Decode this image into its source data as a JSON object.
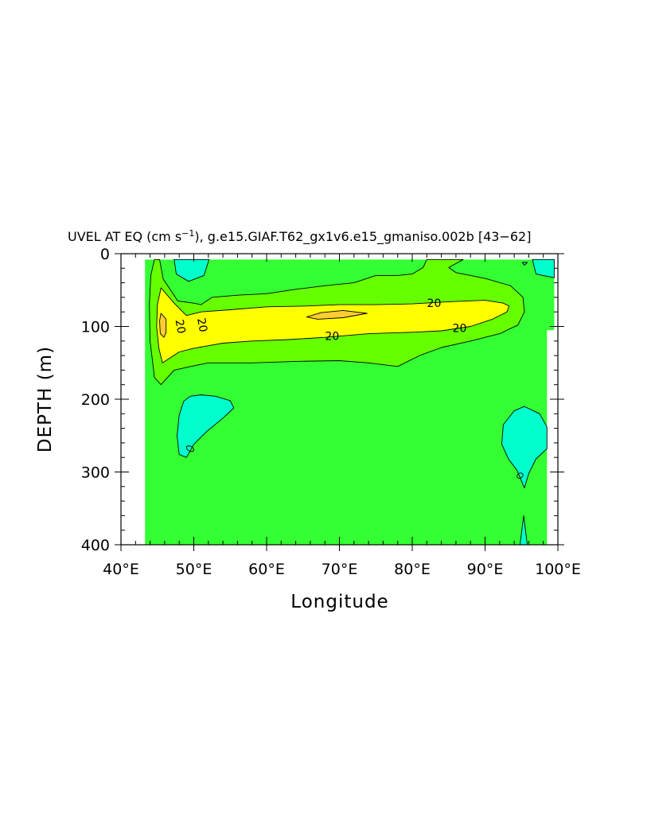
{
  "chart_data": {
    "type": "contour",
    "title": "UVEL AT EQ (cm s⁻¹), g.e15.GIAF.T62_gx1v6.e15_gmaniso.002b  43−62 ",
    "title_parts": {
      "prefix": "UVEL AT EQ (cm s",
      "superscript": "−1",
      "suffix": "), g.e15.GIAF.T62_gx1v6.e15_gmaniso.002b ",
      "years": "[43−62]"
    },
    "xlabel": "Longitude",
    "ylabel": "DEPTH (m)",
    "xlim": [
      40,
      100
    ],
    "ylim": [
      400,
      0
    ],
    "x_ticks": [
      40,
      50,
      60,
      70,
      80,
      90,
      100
    ],
    "x_tick_labels": [
      "40°E",
      "50°E",
      "60°E",
      "70°E",
      "80°E",
      "90°E",
      "100°E"
    ],
    "y_ticks": [
      0,
      100,
      200,
      300,
      400
    ],
    "y_tick_labels": [
      "0",
      "100",
      "200",
      "300",
      "400"
    ],
    "contour_labels": [
      {
        "text": "20",
        "x": 83.0,
        "y": 68
      },
      {
        "text": "20",
        "x": 86.5,
        "y": 102
      },
      {
        "text": "20",
        "x": 69.0,
        "y": 113
      },
      {
        "text": "20",
        "x": 48.2,
        "y": 100
      },
      {
        "text": "20",
        "x": 51.2,
        "y": 98
      }
    ],
    "colors": {
      "background_field": "#33ff33",
      "band_weak": "#66ff00",
      "band_strong": "#ffff00",
      "core": "#ffcc33",
      "negative": "#00ffcc"
    },
    "regions": [
      {
        "level": "negative",
        "points": [
          [
            47.3,
            8
          ],
          [
            52.1,
            8
          ],
          [
            51.4,
            30
          ],
          [
            49.3,
            38
          ],
          [
            47.6,
            28
          ]
        ]
      },
      {
        "level": "negative",
        "points": [
          [
            96.5,
            8
          ],
          [
            99.5,
            8
          ],
          [
            99.5,
            33
          ],
          [
            97.0,
            28
          ]
        ]
      },
      {
        "level": "negative",
        "points": [
          [
            95.1,
            12
          ],
          [
            95.8,
            12
          ],
          [
            95.4,
            16
          ]
        ]
      },
      {
        "level": "negative",
        "points": [
          [
            49.5,
            196
          ],
          [
            51.0,
            194
          ],
          [
            53.0,
            196
          ],
          [
            55.0,
            202
          ],
          [
            55.5,
            212
          ],
          [
            54.0,
            226
          ],
          [
            51.8,
            244
          ],
          [
            50.0,
            262
          ],
          [
            49.0,
            280
          ],
          [
            48.0,
            276
          ],
          [
            47.7,
            250
          ],
          [
            48.0,
            222
          ],
          [
            48.6,
            203
          ]
        ]
      },
      {
        "level": "negative",
        "points": [
          [
            92.5,
            235
          ],
          [
            94.0,
            216
          ],
          [
            95.4,
            210
          ],
          [
            97.5,
            220
          ],
          [
            98.5,
            238
          ],
          [
            98.5,
            268
          ],
          [
            97.0,
            282
          ],
          [
            96.0,
            302
          ],
          [
            95.4,
            322
          ],
          [
            94.4,
            298
          ],
          [
            93.2,
            282
          ],
          [
            92.3,
            262
          ]
        ]
      },
      {
        "level": "negative",
        "points": [
          [
            94.8,
            400
          ],
          [
            95.3,
            360
          ],
          [
            95.8,
            400
          ]
        ]
      },
      {
        "level": "band_weak",
        "points": [
          [
            44.6,
            8
          ],
          [
            45.3,
            8
          ],
          [
            45.8,
            35
          ],
          [
            47.8,
            65
          ],
          [
            50.0,
            68
          ],
          [
            51.0,
            70
          ],
          [
            52.5,
            60
          ],
          [
            56.0,
            57
          ],
          [
            60.0,
            55
          ],
          [
            64.0,
            49
          ],
          [
            68.0,
            44
          ],
          [
            72.0,
            40
          ],
          [
            75.0,
            30
          ],
          [
            78.0,
            30
          ],
          [
            80.0,
            28
          ],
          [
            81.5,
            19
          ],
          [
            82.0,
            8
          ],
          [
            87.0,
            8
          ],
          [
            85.0,
            19
          ],
          [
            86.0,
            26
          ],
          [
            90.0,
            34
          ],
          [
            93.5,
            44
          ],
          [
            95.2,
            60
          ],
          [
            95.4,
            80
          ],
          [
            94.5,
            98
          ],
          [
            92.0,
            110
          ],
          [
            88.0,
            120
          ],
          [
            84.0,
            129
          ],
          [
            81.0,
            140
          ],
          [
            78.0,
            155
          ],
          [
            74.0,
            150
          ],
          [
            70.0,
            147
          ],
          [
            64.0,
            148
          ],
          [
            58.0,
            150
          ],
          [
            52.0,
            150
          ],
          [
            50.0,
            154
          ],
          [
            47.3,
            160
          ],
          [
            45.5,
            180
          ],
          [
            44.6,
            170
          ],
          [
            44.0,
            120
          ],
          [
            43.9,
            70
          ],
          [
            44.1,
            30
          ]
        ]
      },
      {
        "level": "band_strong",
        "points": [
          [
            45.5,
            47
          ],
          [
            47.3,
            68
          ],
          [
            49.0,
            85
          ],
          [
            51.0,
            80
          ],
          [
            55.0,
            77
          ],
          [
            60.0,
            73
          ],
          [
            65.0,
            72
          ],
          [
            70.0,
            70
          ],
          [
            75.0,
            70
          ],
          [
            80.0,
            69
          ],
          [
            85.0,
            66
          ],
          [
            90.0,
            64
          ],
          [
            92.5,
            68
          ],
          [
            93.3,
            72
          ],
          [
            93.0,
            80
          ],
          [
            91.0,
            90
          ],
          [
            88.0,
            100
          ],
          [
            84.0,
            106
          ],
          [
            80.0,
            108
          ],
          [
            74.0,
            110
          ],
          [
            68.0,
            115
          ],
          [
            63.0,
            118
          ],
          [
            58.0,
            120
          ],
          [
            54.0,
            123
          ],
          [
            50.0,
            130
          ],
          [
            48.0,
            135
          ],
          [
            45.7,
            150
          ],
          [
            45.2,
            130
          ],
          [
            44.9,
            100
          ],
          [
            45.0,
            70
          ]
        ]
      },
      {
        "level": "core",
        "points": [
          [
            65.5,
            87
          ],
          [
            67.5,
            81
          ],
          [
            70.5,
            78
          ],
          [
            73.8,
            82
          ],
          [
            70.5,
            88
          ],
          [
            67.0,
            90
          ]
        ]
      },
      {
        "level": "core",
        "points": [
          [
            45.5,
            82
          ],
          [
            46.2,
            90
          ],
          [
            46.2,
            108
          ],
          [
            45.9,
            115
          ],
          [
            45.4,
            110
          ],
          [
            45.3,
            92
          ]
        ]
      }
    ]
  }
}
